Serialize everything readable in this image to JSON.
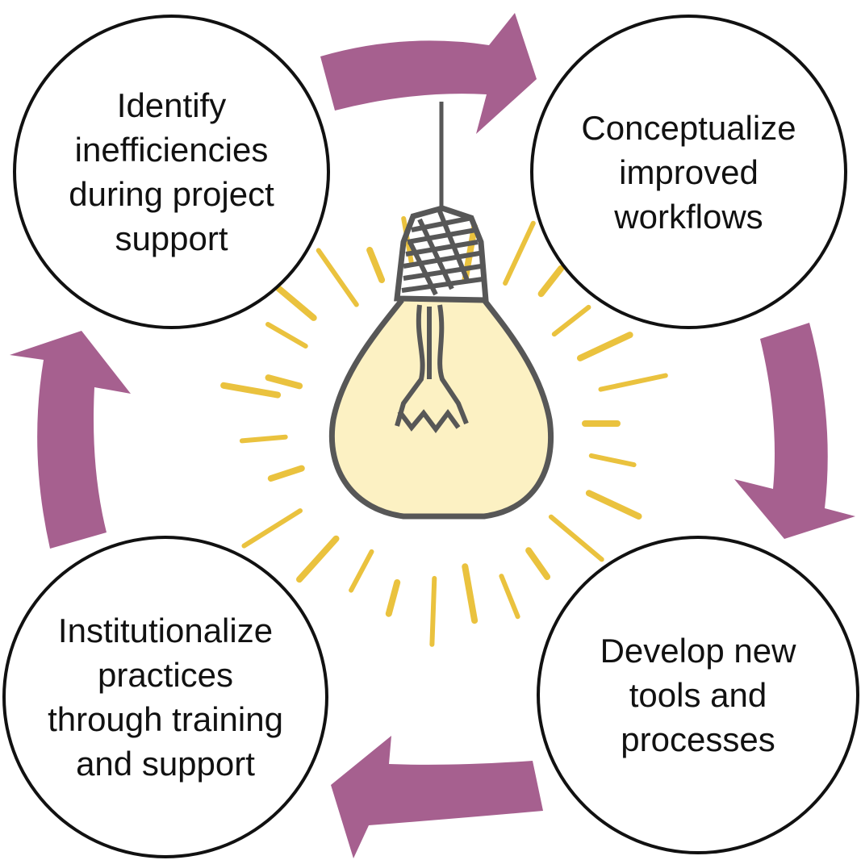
{
  "colors": {
    "arrow": "#a6608f",
    "bulb_glass": "#fcf1c3",
    "bulb_outline": "#575757",
    "rays": "#eac23e",
    "outline": "#111111"
  },
  "icon": "lightbulb-icon",
  "steps": [
    {
      "id": "identify",
      "lines": [
        "Identify",
        "inefficiencies",
        "during project",
        "support"
      ]
    },
    {
      "id": "conceptualize",
      "lines": [
        "Conceptualize",
        "improved",
        "workflows"
      ]
    },
    {
      "id": "develop",
      "lines": [
        "Develop new",
        "tools and",
        "processes"
      ]
    },
    {
      "id": "institutionalize",
      "lines": [
        "Institutionalize",
        "practices",
        "through training",
        "and support"
      ]
    }
  ]
}
